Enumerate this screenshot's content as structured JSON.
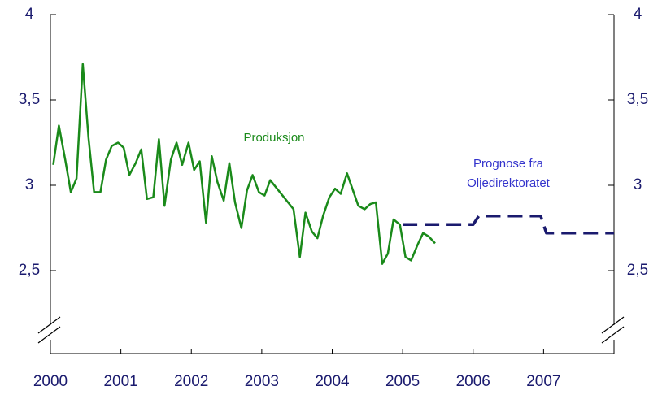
{
  "chart_data": {
    "type": "line",
    "xlim": [
      2000,
      2008
    ],
    "xticks": [
      2000,
      2001,
      2002,
      2003,
      2004,
      2005,
      2006,
      2007
    ],
    "ylim": [
      2,
      4
    ],
    "yticks": [
      {
        "value": 2.5,
        "label": "2,5"
      },
      3,
      {
        "value": 3.5,
        "label": "3,5"
      },
      4
    ],
    "y2lim": [
      2,
      4
    ],
    "y2ticks": [
      {
        "value": 2.5,
        "label": "2,5"
      },
      3,
      {
        "value": 3.5,
        "label": "3,5"
      },
      4
    ],
    "annotations": [
      {
        "text": "Produksjon",
        "color": "#1a8a1a"
      },
      {
        "lines": [
          "Prognose fra",
          "Oljedirektoratet"
        ],
        "color": "#3333cc"
      }
    ],
    "series": [
      {
        "color": "#1a8a1a",
        "dashed": false,
        "x": [
          2000.04,
          2000.12,
          2000.21,
          2000.29,
          2000.37,
          2000.46,
          2000.54,
          2000.62,
          2000.71,
          2000.79,
          2000.87,
          2000.96,
          2001.04,
          2001.12,
          2001.21,
          2001.29,
          2001.37,
          2001.46,
          2001.54,
          2001.62,
          2001.71,
          2001.79,
          2001.87,
          2001.96,
          2002.04,
          2002.12,
          2002.21,
          2002.29,
          2002.37,
          2002.46,
          2002.54,
          2002.62,
          2002.71,
          2002.79,
          2002.87,
          2002.96,
          2003.04,
          2003.12,
          2003.45,
          2003.54,
          2003.62,
          2003.71,
          2003.79,
          2003.87,
          2003.96,
          2004.04,
          2004.12,
          2004.21,
          2004.37,
          2004.46,
          2004.54,
          2004.62,
          2004.71,
          2004.79,
          2004.87,
          2004.96,
          2005.04,
          2005.12,
          2005.21,
          2005.29,
          2005.37,
          2005.46
        ],
        "values": [
          3.12,
          3.35,
          3.15,
          2.96,
          3.04,
          3.71,
          3.28,
          2.96,
          2.96,
          3.15,
          3.23,
          3.25,
          3.22,
          3.06,
          3.13,
          3.21,
          2.92,
          2.93,
          3.27,
          2.88,
          3.15,
          3.25,
          3.12,
          3.25,
          3.09,
          3.14,
          2.78,
          3.17,
          3.02,
          2.91,
          3.13,
          2.9,
          2.75,
          2.97,
          3.06,
          2.96,
          2.94,
          3.03,
          2.86,
          2.58,
          2.84,
          2.73,
          2.69,
          2.82,
          2.93,
          2.98,
          2.95,
          3.07,
          2.88,
          2.86,
          2.89,
          2.9,
          2.54,
          2.6,
          2.8,
          2.77,
          2.58,
          2.56,
          2.65,
          2.72,
          2.7,
          2.66
        ]
      },
      {
        "color": "#1a1a6e",
        "dashed": true,
        "x": [
          2005.0,
          2006.0,
          2006.08,
          2006.96,
          2007.04,
          2008.0
        ],
        "values": [
          2.77,
          2.77,
          2.82,
          2.82,
          2.72,
          2.72
        ]
      }
    ]
  }
}
